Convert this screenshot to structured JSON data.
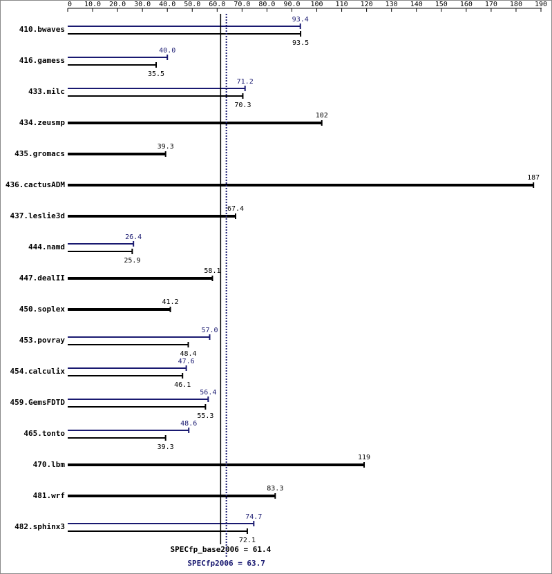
{
  "chart_data": {
    "type": "bar",
    "orientation": "horizontal",
    "categories": [
      "410.bwaves",
      "416.gamess",
      "433.milc",
      "434.zeusmp",
      "435.gromacs",
      "436.cactusADM",
      "437.leslie3d",
      "444.namd",
      "447.dealII",
      "450.soplex",
      "453.povray",
      "454.calculix",
      "459.GemsFDTD",
      "465.tonto",
      "470.lbm",
      "481.wrf",
      "482.sphinx3"
    ],
    "series": [
      {
        "color": "#191970",
        "values": [
          93.4,
          40.0,
          71.2,
          null,
          null,
          null,
          null,
          26.4,
          null,
          null,
          57.0,
          47.6,
          56.4,
          48.6,
          null,
          null,
          74.7
        ],
        "value_labels": [
          "93.4",
          "40.0",
          "71.2",
          null,
          null,
          null,
          null,
          "26.4",
          null,
          null,
          "57.0",
          "47.6",
          "56.4",
          "48.6",
          null,
          null,
          "74.7"
        ]
      },
      {
        "color": "#000000",
        "values": [
          93.5,
          35.5,
          70.3,
          102,
          39.3,
          187,
          67.4,
          25.9,
          58.1,
          41.2,
          48.4,
          46.1,
          55.3,
          39.3,
          119,
          83.3,
          72.1
        ]
      }
    ],
    "xlim": [
      0,
      190
    ],
    "xticks": [
      0,
      {
        "value": 10,
        "label": "10.0"
      },
      {
        "value": 20,
        "label": "20.0"
      },
      {
        "value": 30,
        "label": "30.0"
      },
      {
        "value": 40,
        "label": "40.0"
      },
      {
        "value": 50,
        "label": "50.0"
      },
      {
        "value": 60,
        "label": "60.0"
      },
      {
        "value": 70,
        "label": "70.0"
      },
      {
        "value": 80,
        "label": "80.0"
      },
      {
        "value": 90,
        "label": "90.0"
      },
      100,
      110,
      120,
      130,
      140,
      150,
      160,
      170,
      180,
      190
    ],
    "reference_lines": [
      {
        "text": "SPECfp_base2006 = 61.4",
        "value": 61.4,
        "color": "#000000",
        "dashed": false
      },
      {
        "text": "SPECfp2006 = 63.7",
        "value": 63.7,
        "color": "#191970",
        "dashed": true
      }
    ]
  }
}
